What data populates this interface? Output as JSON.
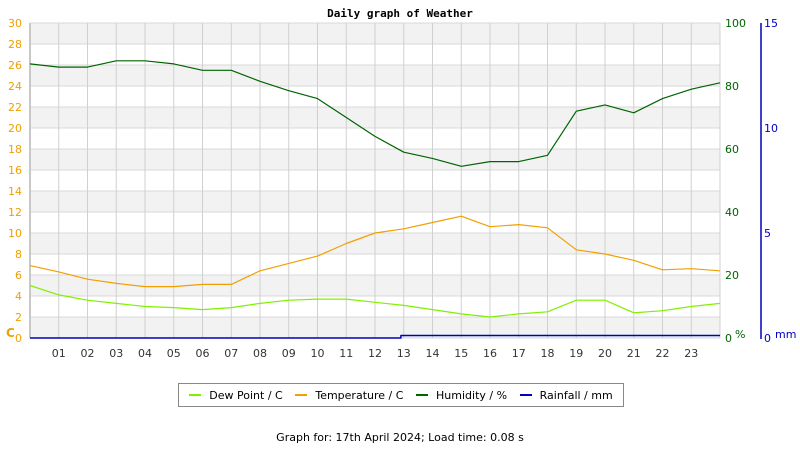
{
  "chart_data": {
    "type": "line",
    "title": "Daily graph of Weather",
    "xlabel": "",
    "x_ticks": [
      "01",
      "02",
      "03",
      "04",
      "05",
      "06",
      "07",
      "08",
      "09",
      "10",
      "11",
      "12",
      "13",
      "14",
      "15",
      "16",
      "17",
      "18",
      "19",
      "20",
      "21",
      "22",
      "23"
    ],
    "xlim": [
      0,
      24
    ],
    "axes": {
      "left": {
        "label": "C",
        "ticks": [
          0,
          2,
          4,
          6,
          8,
          10,
          12,
          14,
          16,
          18,
          20,
          22,
          24,
          26,
          28,
          30
        ],
        "ylim": [
          0,
          30
        ],
        "color": "#f0a000"
      },
      "right": {
        "label": "%",
        "ticks": [
          0,
          20,
          40,
          60,
          80,
          100
        ],
        "ylim": [
          0,
          100
        ],
        "color": "#006400"
      },
      "far_right": {
        "label": "mm",
        "ticks": [
          0,
          5,
          10,
          15
        ],
        "ylim": [
          0,
          15
        ],
        "color": "#0000c0"
      }
    },
    "grid": true,
    "legend_position": "bottom",
    "series": [
      {
        "name": "Dew Point / C",
        "axis": "left",
        "color": "#80f000",
        "x": [
          0,
          1,
          2,
          3,
          4,
          5,
          6,
          7,
          8,
          9,
          10,
          11,
          12,
          13,
          14,
          15,
          16,
          17,
          18,
          19,
          20,
          21,
          22,
          23,
          24
        ],
        "values": [
          5.0,
          4.1,
          3.6,
          3.3,
          3.0,
          2.9,
          2.7,
          2.9,
          3.3,
          3.6,
          3.7,
          3.7,
          3.4,
          3.1,
          2.7,
          2.3,
          2.0,
          2.3,
          2.5,
          3.6,
          3.6,
          2.4,
          2.6,
          3.0,
          3.3
        ]
      },
      {
        "name": "Temperature / C",
        "axis": "left",
        "color": "#f0a000",
        "x": [
          0,
          1,
          2,
          3,
          4,
          5,
          6,
          7,
          8,
          9,
          10,
          11,
          12,
          13,
          14,
          15,
          16,
          17,
          18,
          19,
          20,
          21,
          22,
          23,
          24
        ],
        "values": [
          6.9,
          6.3,
          5.6,
          5.2,
          4.9,
          4.9,
          5.1,
          5.1,
          6.4,
          7.1,
          7.8,
          9.0,
          10.0,
          10.4,
          11.0,
          11.6,
          10.6,
          10.8,
          10.5,
          8.4,
          8.0,
          7.4,
          6.5,
          6.6,
          6.4
        ]
      },
      {
        "name": "Humidity / %",
        "axis": "right",
        "color": "#006400",
        "x": [
          0,
          1,
          2,
          3,
          4,
          5,
          6,
          7,
          8,
          9,
          10,
          11,
          12,
          13,
          14,
          15,
          16,
          17,
          18,
          19,
          20,
          21,
          22,
          23,
          24
        ],
        "values": [
          87,
          86,
          86,
          88,
          88,
          87,
          85,
          85,
          81.5,
          78.5,
          76,
          70,
          64,
          59,
          57,
          54.5,
          56,
          56,
          58,
          72,
          74,
          71.5,
          76,
          79,
          81
        ]
      },
      {
        "name": "Rainfall / mm",
        "axis": "far_right",
        "color": "#0000c0",
        "x": [
          0,
          12.9,
          12.9,
          24
        ],
        "values": [
          0,
          0,
          0.12,
          0.12
        ]
      }
    ]
  },
  "labels": {
    "title": "Daily graph of Weather",
    "left_unit": "C",
    "right_unit": "%",
    "far_right_unit": "mm"
  },
  "legend": [
    {
      "label": "Dew Point / C",
      "color": "#80f000"
    },
    {
      "label": "Temperature / C",
      "color": "#f0a000"
    },
    {
      "label": "Humidity / %",
      "color": "#006400"
    },
    {
      "label": "Rainfall / mm",
      "color": "#0000c0"
    }
  ],
  "footer": "Graph for: 17th April 2024; Load time: 0.08 s"
}
